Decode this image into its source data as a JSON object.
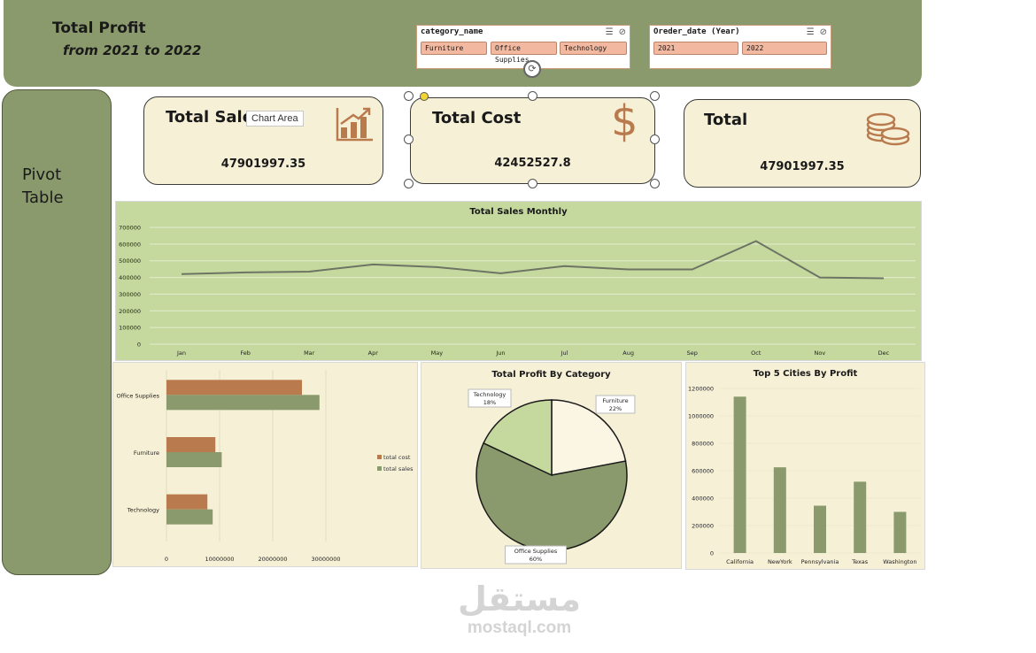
{
  "header": {
    "title": "Total Profit",
    "subtitle": "from 2021 to 2022"
  },
  "slicers": {
    "category": {
      "title": "category_name",
      "options": [
        "Furniture",
        "Office Supplies",
        "Technology"
      ]
    },
    "year": {
      "title": "Oreder_date (Year)",
      "options": [
        "2021",
        "2022"
      ]
    }
  },
  "sidebar": {
    "label_line1": "Pivot",
    "label_line2": "Table"
  },
  "cards": {
    "sales": {
      "title": "Total Sales",
      "value": "47901997.35",
      "icon": "bar-chart-up-icon"
    },
    "cost": {
      "title": "Total Cost",
      "value": "42452527.8",
      "icon": "dollar-icon"
    },
    "total": {
      "title": "Total",
      "value": "47901997.35",
      "icon": "coins-icon"
    }
  },
  "tooltip": {
    "text": "Chart Area"
  },
  "colors": {
    "olive": "#8b9a6c",
    "copper": "#b97a4e",
    "cream": "#f6f0d6",
    "light_green": "#c5d99e",
    "pale": "#fbf6e3"
  },
  "charts": {
    "monthly": {
      "type": "line",
      "title": "Total Sales Monthly",
      "categories": [
        "Jan",
        "Feb",
        "Mar",
        "Apr",
        "May",
        "Jun",
        "Jul",
        "Aug",
        "Sep",
        "Oct",
        "Nov",
        "Dec"
      ],
      "values": [
        420000,
        430000,
        435000,
        478000,
        462000,
        425000,
        468000,
        448000,
        448000,
        618000,
        400000,
        395000
      ],
      "yticks": [
        0,
        100000,
        200000,
        300000,
        400000,
        500000,
        600000,
        700000
      ],
      "ylim": [
        0,
        700000
      ]
    },
    "bars": {
      "type": "bar",
      "categories": [
        "Office Supplies",
        "Furniture",
        "Technology"
      ],
      "series": [
        {
          "name": "total cost",
          "values": [
            25500000,
            9200000,
            7700000
          ],
          "color": "#b97a4e"
        },
        {
          "name": "total sales",
          "values": [
            28800000,
            10400000,
            8700000
          ],
          "color": "#8b9a6c"
        }
      ],
      "xticks": [
        0,
        10000000,
        20000000,
        30000000
      ],
      "xlim": [
        0,
        36000000
      ]
    },
    "pie": {
      "type": "pie",
      "title": "Total Profit By Category",
      "slices": [
        {
          "label": "Furniture",
          "pct_label": "22%",
          "value": 22,
          "color": "#fbf6e3"
        },
        {
          "label": "Office Supplies",
          "pct_label": "60%",
          "value": 60,
          "color": "#8b9a6c"
        },
        {
          "label": "Technology",
          "pct_label": "18%",
          "value": 18,
          "color": "#c5d99e"
        }
      ]
    },
    "cities": {
      "type": "bar",
      "title": "Top  5 Cities By Profit",
      "categories": [
        "California",
        "NewYork",
        "Pennsylvania",
        "Texas",
        "Washington"
      ],
      "values": [
        1140000,
        625000,
        345000,
        520000,
        300000
      ],
      "yticks": [
        0,
        200000,
        400000,
        600000,
        800000,
        1000000,
        1200000
      ],
      "ylim": [
        0,
        1200000
      ]
    }
  },
  "watermark": {
    "logo": "مستقل",
    "text": "mostaql.com"
  }
}
